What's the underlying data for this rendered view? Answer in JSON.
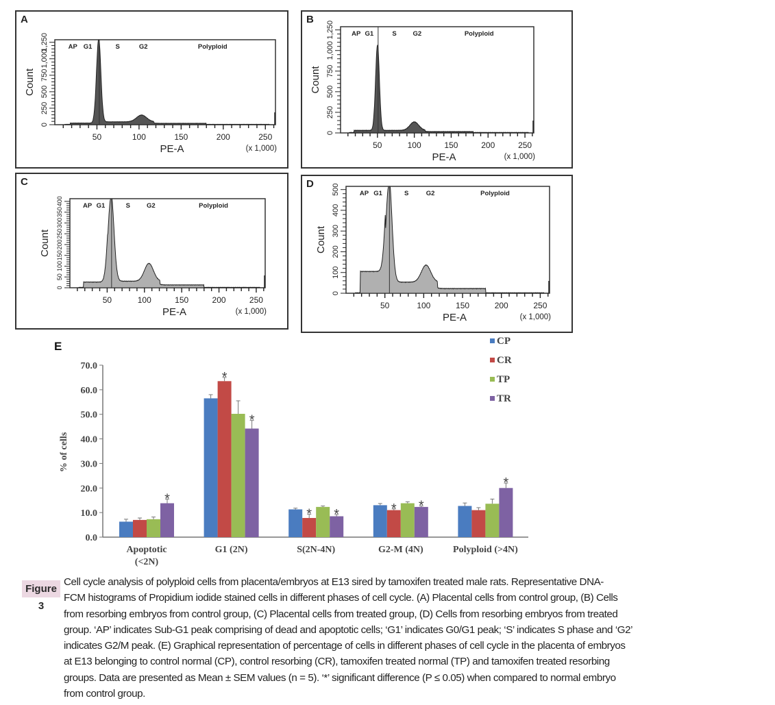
{
  "figure_label": "Figure 3",
  "caption_lines": [
    "Cell cycle analysis of polyploid cells from placenta/embryos at E13 sired by tamoxifen treated male rats. Representative DNA-",
    "FCM histograms of Propidium iodide stained cells in different phases of cell cycle. (A) Placental cells from control group, (B) Cells",
    "from resorbing embryos from control group, (C) Placental cells from treated group, (D) Cells from resorbing embryos from treated",
    "group. ‘AP’ indicates Sub-G1 peak comprising of dead and apoptotic cells; ‘G1’ indicates G0/G1 peak; ‘S’ indicates S phase and ‘G2’",
    "indicates G2/M peak. (E) Graphical representation of percentage of cells in different phases of cell cycle in the placenta of embryos",
    "at E13 belonging to control normal (CP), control resorbing (CR), tamoxifen treated normal (TP) and tamoxifen treated resorbing",
    "groups. Data are presented as Mean ± SEM values (n = 5). ‘*’ significant difference (P ≤ 0.05) when compared to normal embryo",
    "from control group."
  ],
  "chart_data": [
    {
      "type": "area",
      "panel": "A",
      "title": "",
      "xlabel": "PE-A",
      "x_unit": "(x 1,000)",
      "ylabel": "Count",
      "xticks": [
        50,
        100,
        150,
        200,
        250
      ],
      "yticks": [
        "0",
        "250",
        "500",
        "750",
        "1,000",
        "1,250"
      ],
      "xlim": [
        0,
        262
      ],
      "gate_labels": [
        "AP",
        "G1",
        "S",
        "G2",
        "Polyploid"
      ],
      "peaks": {
        "g1_pos": 52,
        "g1_height": 1.0,
        "g1_width": 2.6,
        "g2_pos": 103,
        "g2_height": 0.08,
        "s_level": 0.03,
        "ap_level": 0.015
      },
      "fill": "#555555"
    },
    {
      "type": "area",
      "panel": "B",
      "title": "",
      "xlabel": "PE-A",
      "x_unit": "(x 1,000)",
      "ylabel": "Count",
      "xticks": [
        50,
        100,
        150,
        200,
        250
      ],
      "yticks": [
        "0",
        "250",
        "500",
        "750",
        "1,000",
        "1,250"
      ],
      "xlim": [
        0,
        262
      ],
      "gate_labels": [
        "AP",
        "G1",
        "S",
        "G2",
        "Polyploid"
      ],
      "peaks": {
        "g1_pos": 50,
        "g1_height": 0.82,
        "g1_width": 2.6,
        "g2_pos": 100,
        "g2_height": 0.08,
        "s_level": 0.02,
        "ap_level": 0.02
      },
      "fill": "#555555"
    },
    {
      "type": "area",
      "panel": "C",
      "title": "",
      "xlabel": "PE-A",
      "x_unit": "(x 1,000)",
      "ylabel": "Count",
      "xticks": [
        50,
        100,
        150,
        200,
        250
      ],
      "yticks": [
        "0",
        "50",
        "100",
        "150",
        "200",
        "250",
        "300",
        "350",
        "400"
      ],
      "xlim": [
        0,
        262
      ],
      "gate_labels": [
        "AP",
        "G1",
        "S",
        "G2",
        "Polyploid"
      ],
      "peaks": {
        "g1_pos": 55,
        "g1_height": 1.0,
        "g1_width": 4,
        "g2_pos": 106,
        "g2_height": 0.2,
        "s_level": 0.07,
        "ap_level": 0.06
      },
      "fill": "#b0b0b0"
    },
    {
      "type": "area",
      "panel": "D",
      "title": "",
      "xlabel": "PE-A",
      "x_unit": "(x 1,000)",
      "ylabel": "Count",
      "xticks": [
        50,
        100,
        150,
        200,
        250
      ],
      "yticks": [
        "0",
        "100",
        "200",
        "300",
        "400",
        "500"
      ],
      "xlim": [
        0,
        262
      ],
      "gate_labels": [
        "AP",
        "G1",
        "S",
        "G2",
        "Polyploid"
      ],
      "peaks": {
        "g1_pos": 55,
        "g1_height": 1.0,
        "g1_width": 4,
        "g2_pos": 103,
        "g2_height": 0.16,
        "s_level": 0.1,
        "ap_level": 0.2
      },
      "fill": "#b0b0b0"
    },
    {
      "type": "bar",
      "panel": "E",
      "title": "",
      "xlabel": "",
      "ylabel": "% of cells",
      "ylim": [
        0,
        70
      ],
      "yticks": [
        "0.0",
        "10.0",
        "20.0",
        "30.0",
        "40.0",
        "50.0",
        "60.0",
        "70.0"
      ],
      "categories": [
        [
          "Apoptotic",
          "(<2N)"
        ],
        [
          "G1 (2N)"
        ],
        [
          "S(2N-4N)"
        ],
        [
          "G2-M (4N)"
        ],
        [
          "Polyploid (>4N)"
        ]
      ],
      "legend_position": "top-right",
      "series": [
        {
          "name": "CP",
          "color": "#4a7cc0",
          "values": [
            6.3,
            56.5,
            11.3,
            13.0,
            12.7
          ],
          "sem": [
            1.0,
            1.5,
            0.5,
            0.7,
            1.2
          ],
          "significant": [
            false,
            false,
            false,
            false,
            false
          ]
        },
        {
          "name": "CR",
          "color": "#c24a46",
          "values": [
            7.0,
            63.5,
            7.8,
            11.0,
            11.0
          ],
          "sem": [
            0.8,
            1.5,
            1.5,
            0.5,
            1.0
          ],
          "significant": [
            false,
            true,
            true,
            true,
            false
          ]
        },
        {
          "name": "TP",
          "color": "#99bc55",
          "values": [
            7.3,
            50.2,
            12.3,
            13.8,
            13.6
          ],
          "sem": [
            0.9,
            5.3,
            0.4,
            0.6,
            1.9
          ],
          "significant": [
            false,
            false,
            false,
            false,
            false
          ]
        },
        {
          "name": "TR",
          "color": "#7e62a3",
          "values": [
            13.8,
            44.2,
            8.5,
            12.3,
            20.0
          ],
          "sem": [
            1.7,
            3.3,
            0.7,
            0.4,
            2.0
          ],
          "significant": [
            true,
            true,
            true,
            true,
            true
          ]
        }
      ],
      "significance_marker": "*"
    }
  ]
}
